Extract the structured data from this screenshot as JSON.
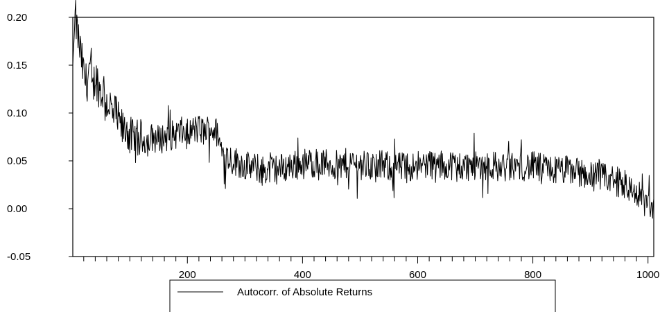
{
  "chart_data": {
    "type": "line",
    "title": "",
    "xlabel": "",
    "ylabel": "",
    "xlim": [
      1,
      1010
    ],
    "ylim": [
      -0.05,
      0.2
    ],
    "yticks": [
      "0.20",
      "0.15",
      "0.10",
      "0.05",
      "0.00",
      "-0.05"
    ],
    "yticks_values": [
      0.2,
      0.15,
      0.1,
      0.05,
      0.0,
      -0.05
    ],
    "xticks": [
      "200",
      "400",
      "600",
      "800",
      "1000"
    ],
    "xticks_values": [
      200,
      400,
      600,
      800,
      1000
    ],
    "x_minor_tick_step": 20,
    "grid": false,
    "legend_position": "bottom",
    "series": [
      {
        "name": "Autocorr. of Absolute Returns",
        "color": "#000000",
        "x": [
          1,
          5,
          10,
          15,
          20,
          25,
          30,
          35,
          40,
          45,
          50,
          55,
          60,
          65,
          70,
          75,
          80,
          85,
          90,
          95,
          100,
          110,
          120,
          130,
          140,
          150,
          160,
          170,
          180,
          190,
          200,
          210,
          220,
          230,
          240,
          250,
          260,
          270,
          280,
          290,
          300,
          320,
          340,
          360,
          380,
          400,
          420,
          440,
          460,
          480,
          500,
          520,
          540,
          560,
          580,
          600,
          620,
          640,
          660,
          680,
          700,
          720,
          740,
          760,
          780,
          800,
          820,
          840,
          860,
          880,
          900,
          920,
          940,
          960,
          970,
          980,
          990,
          1000,
          1005,
          1010
        ],
        "values": [
          0.15,
          0.2,
          0.18,
          0.16,
          0.14,
          0.13,
          0.15,
          0.12,
          0.14,
          0.13,
          0.12,
          0.125,
          0.11,
          0.11,
          0.095,
          0.1,
          0.09,
          0.085,
          0.08,
          0.085,
          0.075,
          0.07,
          0.075,
          0.07,
          0.075,
          0.072,
          0.075,
          0.076,
          0.078,
          0.08,
          0.078,
          0.082,
          0.083,
          0.08,
          0.085,
          0.08,
          0.06,
          0.055,
          0.05,
          0.048,
          0.045,
          0.042,
          0.04,
          0.042,
          0.045,
          0.047,
          0.048,
          0.047,
          0.045,
          0.048,
          0.046,
          0.045,
          0.045,
          0.044,
          0.043,
          0.046,
          0.047,
          0.045,
          0.046,
          0.044,
          0.045,
          0.046,
          0.044,
          0.043,
          0.045,
          0.044,
          0.042,
          0.04,
          0.04,
          0.038,
          0.035,
          0.032,
          0.03,
          0.025,
          0.02,
          0.015,
          0.01,
          0.005,
          0.0,
          0.005
        ]
      }
    ]
  }
}
